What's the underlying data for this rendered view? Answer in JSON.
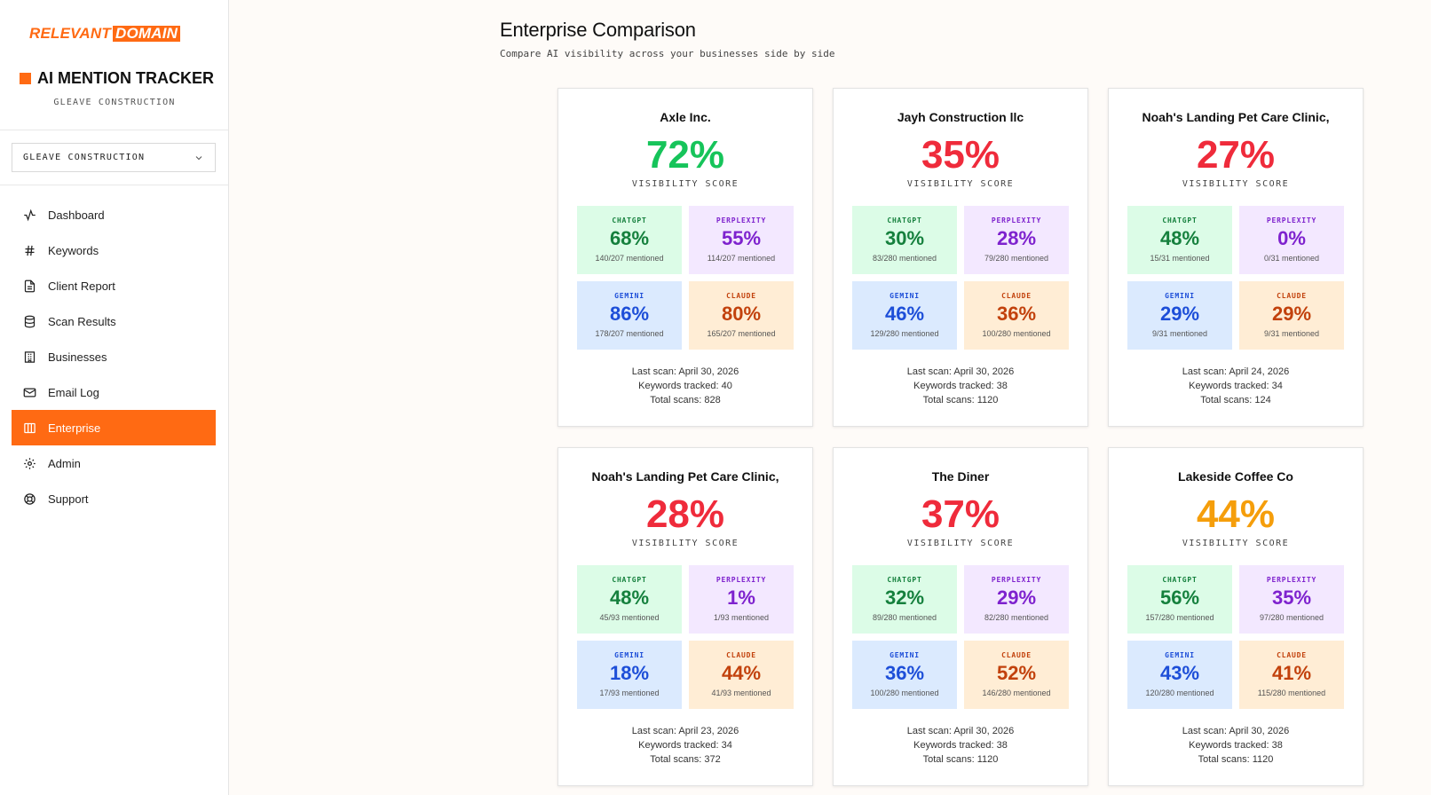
{
  "brand": {
    "word1": "RELEVANT",
    "word2": "DOMAIN"
  },
  "app": {
    "title": "AI MENTION TRACKER",
    "subtitle": "GLEAVE CONSTRUCTION"
  },
  "business_select": {
    "value": "GLEAVE CONSTRUCTION"
  },
  "nav": [
    {
      "label": "Dashboard",
      "icon": "activity-icon",
      "active": false
    },
    {
      "label": "Keywords",
      "icon": "hash-icon",
      "active": false
    },
    {
      "label": "Client Report",
      "icon": "file-text-icon",
      "active": false
    },
    {
      "label": "Scan Results",
      "icon": "database-icon",
      "active": false
    },
    {
      "label": "Businesses",
      "icon": "building-icon",
      "active": false
    },
    {
      "label": "Email Log",
      "icon": "mail-icon",
      "active": false
    },
    {
      "label": "Enterprise",
      "icon": "columns-icon",
      "active": true
    },
    {
      "label": "Admin",
      "icon": "gear-icon",
      "active": false
    },
    {
      "label": "Support",
      "icon": "lifebuoy-icon",
      "active": false
    }
  ],
  "page": {
    "title": "Enterprise Comparison",
    "subtitle": "Compare AI visibility across your businesses side by side"
  },
  "labels": {
    "visibility": "VISIBILITY SCORE",
    "chatgpt": "CHATGPT",
    "perplexity": "PERPLEXITY",
    "gemini": "GEMINI",
    "claude": "CLAUDE"
  },
  "colors": {
    "accent": "#ff6a13",
    "score_high": "#16c45a",
    "score_low": "#ef2b3b",
    "score_mid": "#f59e0b"
  },
  "cards": [
    {
      "name": "Axle Inc.",
      "score": "72%",
      "score_color": "#16c45a",
      "chatgpt": {
        "pct": "68%",
        "mentioned": "140/207 mentioned"
      },
      "perplexity": {
        "pct": "55%",
        "mentioned": "114/207 mentioned"
      },
      "gemini": {
        "pct": "86%",
        "mentioned": "178/207 mentioned"
      },
      "claude": {
        "pct": "80%",
        "mentioned": "165/207 mentioned"
      },
      "last_scan": "Last scan: April 30, 2026",
      "keywords": "Keywords tracked: 40",
      "total_scans": "Total scans: 828"
    },
    {
      "name": "Jayh Construction llc",
      "score": "35%",
      "score_color": "#ef2b3b",
      "chatgpt": {
        "pct": "30%",
        "mentioned": "83/280 mentioned"
      },
      "perplexity": {
        "pct": "28%",
        "mentioned": "79/280 mentioned"
      },
      "gemini": {
        "pct": "46%",
        "mentioned": "129/280 mentioned"
      },
      "claude": {
        "pct": "36%",
        "mentioned": "100/280 mentioned"
      },
      "last_scan": "Last scan: April 30, 2026",
      "keywords": "Keywords tracked: 38",
      "total_scans": "Total scans: 1120"
    },
    {
      "name": "Noah's Landing Pet Care Clinic,",
      "score": "27%",
      "score_color": "#ef2b3b",
      "chatgpt": {
        "pct": "48%",
        "mentioned": "15/31 mentioned"
      },
      "perplexity": {
        "pct": "0%",
        "mentioned": "0/31 mentioned"
      },
      "gemini": {
        "pct": "29%",
        "mentioned": "9/31 mentioned"
      },
      "claude": {
        "pct": "29%",
        "mentioned": "9/31 mentioned"
      },
      "last_scan": "Last scan: April 24, 2026",
      "keywords": "Keywords tracked: 34",
      "total_scans": "Total scans: 124"
    },
    {
      "name": "Noah's Landing Pet Care Clinic,",
      "score": "28%",
      "score_color": "#ef2b3b",
      "chatgpt": {
        "pct": "48%",
        "mentioned": "45/93 mentioned"
      },
      "perplexity": {
        "pct": "1%",
        "mentioned": "1/93 mentioned"
      },
      "gemini": {
        "pct": "18%",
        "mentioned": "17/93 mentioned"
      },
      "claude": {
        "pct": "44%",
        "mentioned": "41/93 mentioned"
      },
      "last_scan": "Last scan: April 23, 2026",
      "keywords": "Keywords tracked: 34",
      "total_scans": "Total scans: 372"
    },
    {
      "name": "The Diner",
      "score": "37%",
      "score_color": "#ef2b3b",
      "chatgpt": {
        "pct": "32%",
        "mentioned": "89/280 mentioned"
      },
      "perplexity": {
        "pct": "29%",
        "mentioned": "82/280 mentioned"
      },
      "gemini": {
        "pct": "36%",
        "mentioned": "100/280 mentioned"
      },
      "claude": {
        "pct": "52%",
        "mentioned": "146/280 mentioned"
      },
      "last_scan": "Last scan: April 30, 2026",
      "keywords": "Keywords tracked: 38",
      "total_scans": "Total scans: 1120"
    },
    {
      "name": "Lakeside Coffee Co",
      "score": "44%",
      "score_color": "#f59e0b",
      "chatgpt": {
        "pct": "56%",
        "mentioned": "157/280 mentioned"
      },
      "perplexity": {
        "pct": "35%",
        "mentioned": "97/280 mentioned"
      },
      "gemini": {
        "pct": "43%",
        "mentioned": "120/280 mentioned"
      },
      "claude": {
        "pct": "41%",
        "mentioned": "115/280 mentioned"
      },
      "last_scan": "Last scan: April 30, 2026",
      "keywords": "Keywords tracked: 38",
      "total_scans": "Total scans: 1120"
    }
  ]
}
